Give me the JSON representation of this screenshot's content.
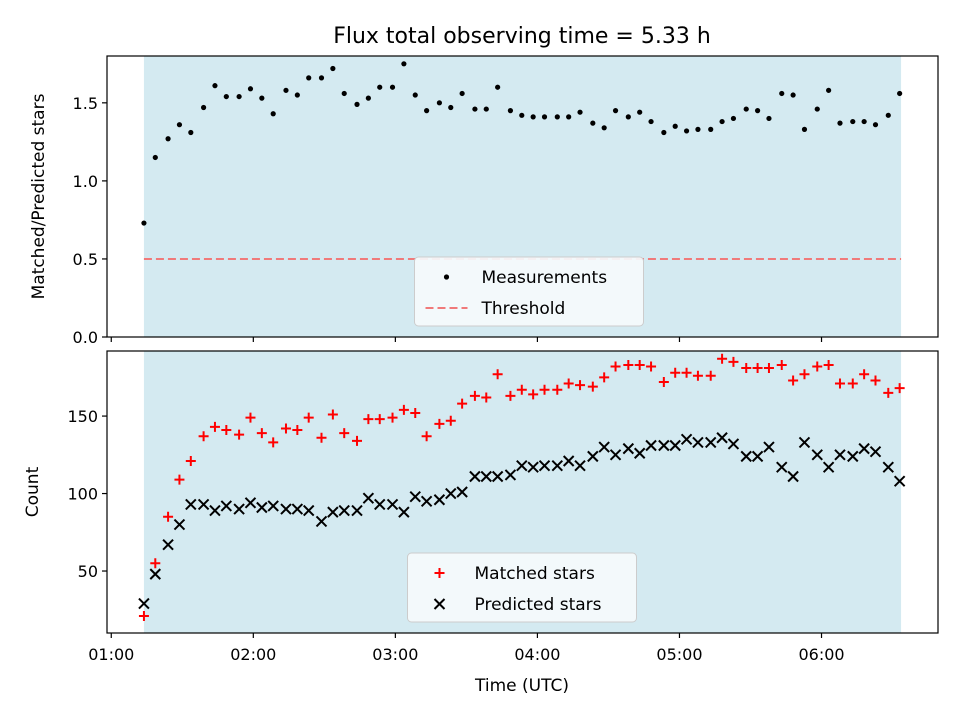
{
  "figure": {
    "title": "Flux total observing time = 5.33 h",
    "xlabel": "Time (UTC)",
    "xticks": [
      {
        "t": 1.0,
        "label": "01:00"
      },
      {
        "t": 2.0,
        "label": "02:00"
      },
      {
        "t": 3.0,
        "label": "03:00"
      },
      {
        "t": 4.0,
        "label": "04:00"
      },
      {
        "t": 5.0,
        "label": "05:00"
      },
      {
        "t": 6.0,
        "label": "06:00"
      }
    ],
    "xlim": [
      0.97,
      6.82
    ],
    "observing_window": [
      1.23,
      6.56
    ],
    "colors": {
      "window": "#d4eaf1",
      "measurements": "#000000",
      "threshold": "#f07a7a",
      "matched": "#ff0000",
      "predicted": "#000000",
      "legend_bg": "#f5fafc"
    }
  },
  "chart_data": [
    {
      "type": "scatter",
      "ylabel": "Matched/Predicted stars",
      "ylim": [
        0,
        1.8
      ],
      "yticks": [
        {
          "v": 0.0,
          "label": "0.0"
        },
        {
          "v": 0.5,
          "label": "0.5"
        },
        {
          "v": 1.0,
          "label": "1.0"
        },
        {
          "v": 1.5,
          "label": "1.5"
        }
      ],
      "legend": {
        "placement": "lower-center",
        "entries": [
          "Measurements",
          "Threshold"
        ]
      },
      "threshold": {
        "name": "Threshold",
        "value": 0.5
      },
      "series": [
        {
          "name": "Measurements",
          "x": [
            1.23,
            1.31,
            1.4,
            1.48,
            1.56,
            1.65,
            1.73,
            1.81,
            1.9,
            1.98,
            2.06,
            2.14,
            2.23,
            2.31,
            2.39,
            2.48,
            2.56,
            2.64,
            2.73,
            2.81,
            2.89,
            2.98,
            3.06,
            3.14,
            3.22,
            3.31,
            3.39,
            3.47,
            3.56,
            3.64,
            3.72,
            3.81,
            3.89,
            3.97,
            4.05,
            4.14,
            4.22,
            4.3,
            4.39,
            4.47,
            4.55,
            4.64,
            4.72,
            4.8,
            4.89,
            4.97,
            5.05,
            5.13,
            5.22,
            5.3,
            5.38,
            5.47,
            5.55,
            5.63,
            5.72,
            5.8,
            5.88,
            5.97,
            6.05,
            6.13,
            6.22,
            6.3,
            6.38,
            6.47,
            6.55
          ],
          "y": [
            0.73,
            1.15,
            1.27,
            1.36,
            1.31,
            1.47,
            1.61,
            1.54,
            1.54,
            1.59,
            1.53,
            1.43,
            1.58,
            1.55,
            1.66,
            1.66,
            1.72,
            1.56,
            1.49,
            1.53,
            1.6,
            1.6,
            1.75,
            1.55,
            1.45,
            1.5,
            1.47,
            1.56,
            1.46,
            1.46,
            1.6,
            1.45,
            1.42,
            1.41,
            1.41,
            1.41,
            1.41,
            1.44,
            1.37,
            1.34,
            1.45,
            1.41,
            1.44,
            1.38,
            1.31,
            1.35,
            1.32,
            1.33,
            1.33,
            1.38,
            1.4,
            1.46,
            1.45,
            1.4,
            1.56,
            1.55,
            1.33,
            1.46,
            1.58,
            1.37,
            1.38,
            1.38,
            1.36,
            1.42,
            1.56
          ]
        }
      ]
    },
    {
      "type": "scatter",
      "ylabel": "Count",
      "ylim": [
        10,
        192
      ],
      "yticks": [
        {
          "v": 50,
          "label": "50"
        },
        {
          "v": 100,
          "label": "100"
        },
        {
          "v": 150,
          "label": "150"
        }
      ],
      "legend": {
        "placement": "lower-center",
        "entries": [
          "Matched stars",
          "Predicted stars"
        ]
      },
      "series": [
        {
          "name": "Matched stars",
          "marker": "plus",
          "x": [
            1.23,
            1.31,
            1.4,
            1.48,
            1.56,
            1.65,
            1.73,
            1.81,
            1.9,
            1.98,
            2.06,
            2.14,
            2.23,
            2.31,
            2.39,
            2.48,
            2.56,
            2.64,
            2.73,
            2.81,
            2.89,
            2.98,
            3.06,
            3.14,
            3.22,
            3.31,
            3.39,
            3.47,
            3.56,
            3.64,
            3.72,
            3.81,
            3.89,
            3.97,
            4.05,
            4.14,
            4.22,
            4.3,
            4.39,
            4.47,
            4.55,
            4.64,
            4.72,
            4.8,
            4.89,
            4.97,
            5.05,
            5.13,
            5.22,
            5.3,
            5.38,
            5.47,
            5.55,
            5.63,
            5.72,
            5.8,
            5.88,
            5.97,
            6.05,
            6.13,
            6.22,
            6.3,
            6.38,
            6.47,
            6.55
          ],
          "y": [
            21,
            55,
            85,
            109,
            121,
            137,
            143,
            141,
            138,
            149,
            139,
            133,
            142,
            141,
            149,
            136,
            151,
            139,
            134,
            148,
            148,
            149,
            154,
            152,
            137,
            145,
            147,
            158,
            163,
            162,
            177,
            163,
            167,
            164,
            167,
            167,
            171,
            170,
            169,
            175,
            182,
            183,
            183,
            182,
            172,
            178,
            178,
            176,
            176,
            187,
            185,
            181,
            181,
            181,
            183,
            173,
            177,
            182,
            183,
            171,
            171,
            177,
            173,
            165,
            168
          ]
        },
        {
          "name": "Predicted stars",
          "marker": "x",
          "x": [
            1.23,
            1.31,
            1.4,
            1.48,
            1.56,
            1.65,
            1.73,
            1.81,
            1.9,
            1.98,
            2.06,
            2.14,
            2.23,
            2.31,
            2.39,
            2.48,
            2.56,
            2.64,
            2.73,
            2.81,
            2.89,
            2.98,
            3.06,
            3.14,
            3.22,
            3.31,
            3.39,
            3.47,
            3.56,
            3.64,
            3.72,
            3.81,
            3.89,
            3.97,
            4.05,
            4.14,
            4.22,
            4.3,
            4.39,
            4.47,
            4.55,
            4.64,
            4.72,
            4.8,
            4.89,
            4.97,
            5.05,
            5.13,
            5.22,
            5.3,
            5.38,
            5.47,
            5.55,
            5.63,
            5.72,
            5.8,
            5.88,
            5.97,
            6.05,
            6.13,
            6.22,
            6.3,
            6.38,
            6.47,
            6.55
          ],
          "y": [
            29,
            48,
            67,
            80,
            93,
            93,
            89,
            92,
            90,
            94,
            91,
            92,
            90,
            90,
            89,
            82,
            88,
            89,
            89,
            97,
            93,
            93,
            88,
            98,
            95,
            96,
            100,
            101,
            111,
            111,
            111,
            112,
            118,
            117,
            118,
            118,
            121,
            118,
            124,
            130,
            125,
            129,
            126,
            131,
            131,
            131,
            135,
            133,
            133,
            136,
            132,
            124,
            124,
            130,
            117,
            111,
            133,
            125,
            117,
            125,
            124,
            129,
            127,
            117,
            108
          ]
        }
      ]
    }
  ]
}
